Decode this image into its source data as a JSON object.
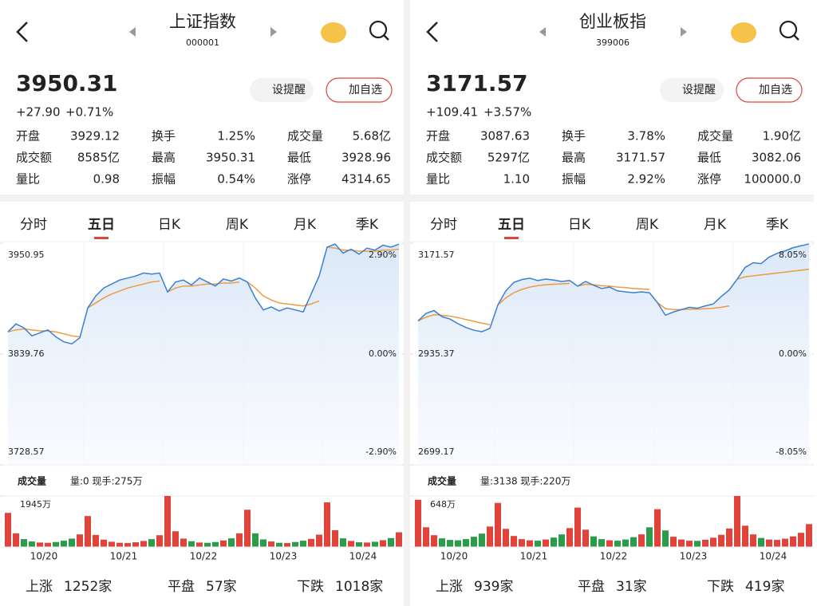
{
  "panels": [
    {
      "header": {
        "title": "上证指数",
        "code": "000001"
      },
      "quote": {
        "price": "3950.31",
        "change": "+27.90",
        "change_pct": "+0.71%"
      },
      "buttons": [
        "设提醒",
        "加自选"
      ],
      "stats": [
        {
          "label": "开盘",
          "value": "3929.12",
          "red": true
        },
        {
          "label": "换手",
          "value": "1.25%",
          "red": false
        },
        {
          "label": "成交量",
          "value": "5.68亿",
          "red": false
        },
        {
          "label": "成交额",
          "value": "8585亿",
          "red": false
        },
        {
          "label": "最高",
          "value": "3950.31",
          "red": true
        },
        {
          "label": "最低",
          "value": "3928.96",
          "red": true
        },
        {
          "label": "量比",
          "value": "0.98",
          "red": false
        },
        {
          "label": "振幅",
          "value": "0.54%",
          "red": false
        },
        {
          "label": "涨停",
          "value": "4314.65",
          "red": true
        }
      ],
      "tabs": [
        "分时",
        "五日",
        "日K",
        "周K",
        "月K",
        "季K"
      ],
      "chart": {
        "type": "line",
        "ylim": [
          3728.57,
          3950.95
        ],
        "yticks": [
          3728.57,
          3839.76,
          3950.95
        ],
        "y2lim": [
          -2.9,
          2.9
        ],
        "y2ticks": [
          {
            "value": -2.9,
            "label": "-2.90%"
          },
          {
            "value": 0,
            "label": "0.00%"
          },
          {
            "value": 2.9,
            "label": "2.90%"
          }
        ],
        "categories": [
          "10/20",
          "10/21",
          "10/22",
          "10/23",
          "10/24"
        ],
        "price": {
          "color": "#3b7fd4",
          "values": [
            3862,
            3870,
            3866,
            3858,
            3861,
            3864,
            3857,
            3852,
            3850,
            3856,
            3886,
            3898,
            3906,
            3910,
            3914,
            3916,
            3918,
            3921,
            3920,
            3921,
            3902,
            3912,
            3914,
            3909,
            3916,
            3912,
            3908,
            3915,
            3913,
            3916,
            3912,
            3896,
            3884,
            3887,
            3883,
            3886,
            3884,
            3882,
            3900,
            3918,
            3947,
            3950,
            3941,
            3945,
            3940,
            3946,
            3944,
            3949,
            3947,
            3950
          ]
        },
        "average": {
          "color": "#ef9a3c",
          "values": [
            3862,
            3864,
            3865,
            3864,
            3863,
            3863,
            3862,
            3860,
            3858,
            3857,
            3886,
            3891,
            3896,
            3900,
            3903,
            3906,
            3908,
            3910,
            3912,
            3913,
            3902,
            3906,
            3908,
            3908,
            3909,
            3910,
            3910,
            3911,
            3911,
            3912,
            3912,
            3906,
            3898,
            3894,
            3891,
            3890,
            3889,
            3888,
            3890,
            3893,
            3947,
            3946,
            3944,
            3944,
            3943,
            3943,
            3943,
            3944,
            3944,
            3945
          ]
        }
      },
      "volume": {
        "title": "成交量",
        "info": "量:0 现手:275万",
        "ylim": [
          0,
          1945
        ],
        "yticks": [
          {
            "value": 1945,
            "label": "1945万"
          }
        ],
        "up_color": "#e0433a",
        "down_color": "#2d9c4a",
        "values": [
          1300,
          520,
          300,
          210,
          170,
          160,
          190,
          240,
          320,
          480,
          1180,
          460,
          280,
          200,
          160,
          150,
          180,
          230,
          300,
          450,
          1945,
          600,
          320,
          220,
          170,
          160,
          190,
          250,
          330,
          520,
          1420,
          520,
          290,
          210,
          160,
          150,
          190,
          240,
          310,
          470,
          1700,
          640,
          330,
          230,
          180,
          170,
          200,
          260,
          340,
          560
        ]
      },
      "footer": [
        {
          "label": "上涨",
          "value": "1252家"
        },
        {
          "label": "平盘",
          "value": "57家"
        },
        {
          "label": "下跌",
          "value": "1018家"
        }
      ]
    },
    {
      "header": {
        "title": "创业板指",
        "code": "399006"
      },
      "quote": {
        "price": "3171.57",
        "change": "+109.41",
        "change_pct": "+3.57%"
      },
      "buttons": [
        "设提醒",
        "加自选"
      ],
      "stats": [
        {
          "label": "开盘",
          "value": "3087.63",
          "red": true
        },
        {
          "label": "换手",
          "value": "3.78%",
          "red": false
        },
        {
          "label": "成交量",
          "value": "1.90亿",
          "red": false
        },
        {
          "label": "成交额",
          "value": "5297亿",
          "red": false
        },
        {
          "label": "最高",
          "value": "3171.57",
          "red": true
        },
        {
          "label": "最低",
          "value": "3082.06",
          "red": true
        },
        {
          "label": "量比",
          "value": "1.10",
          "red": false
        },
        {
          "label": "振幅",
          "value": "2.92%",
          "red": false
        },
        {
          "label": "涨停",
          "value": "100000.0",
          "red": true
        }
      ],
      "tabs": [
        "分时",
        "五日",
        "日K",
        "周K",
        "月K",
        "季K"
      ],
      "chart": {
        "type": "line",
        "ylim": [
          2699.17,
          3171.57
        ],
        "yticks": [
          2699.17,
          2935.37,
          3171.57
        ],
        "y2lim": [
          -8.05,
          8.05
        ],
        "y2ticks": [
          {
            "value": -8.05,
            "label": "-8.05%"
          },
          {
            "value": 0,
            "label": "0.00%"
          },
          {
            "value": 8.05,
            "label": "8.05%"
          }
        ],
        "categories": [
          "10/20",
          "10/21",
          "10/22",
          "10/23",
          "10/24"
        ],
        "price": {
          "color": "#3b7fd4",
          "values": [
            3006,
            3022,
            3028,
            3015,
            3010,
            3000,
            2992,
            2986,
            2983,
            2990,
            3040,
            3070,
            3088,
            3094,
            3097,
            3092,
            3095,
            3093,
            3090,
            3092,
            3080,
            3090,
            3082,
            3075,
            3078,
            3070,
            3068,
            3066,
            3068,
            3066,
            3045,
            3018,
            3025,
            3030,
            3035,
            3033,
            3038,
            3042,
            3058,
            3072,
            3095,
            3120,
            3130,
            3128,
            3142,
            3150,
            3155,
            3162,
            3166,
            3170
          ]
        },
        "average": {
          "color": "#ef9a3c",
          "values": [
            3006,
            3014,
            3019,
            3018,
            3016,
            3013,
            3009,
            3005,
            3001,
            2998,
            3040,
            3055,
            3066,
            3073,
            3078,
            3081,
            3083,
            3084,
            3085,
            3086,
            3080,
            3084,
            3083,
            3081,
            3080,
            3078,
            3077,
            3075,
            3074,
            3073,
            3045,
            3032,
            3030,
            3030,
            3031,
            3031,
            3032,
            3033,
            3035,
            3038,
            3095,
            3100,
            3102,
            3104,
            3106,
            3108,
            3110,
            3112,
            3114,
            3116
          ]
        }
      },
      "volume": {
        "title": "成交量",
        "info": "量:3138 现手:220万",
        "ylim": [
          0,
          648
        ],
        "yticks": [
          {
            "value": 648,
            "label": "648万"
          }
        ],
        "up_color": "#e0433a",
        "down_color": "#2d9c4a",
        "values": [
          600,
          250,
          150,
          110,
          90,
          85,
          100,
          130,
          170,
          260,
          560,
          230,
          140,
          100,
          85,
          80,
          95,
          120,
          160,
          240,
          500,
          220,
          135,
          100,
          85,
          80,
          95,
          125,
          160,
          250,
          480,
          210,
          130,
          95,
          80,
          78,
          92,
          118,
          155,
          235,
          648,
          270,
          160,
          115,
          95,
          90,
          105,
          135,
          180,
          290
        ]
      },
      "footer": [
        {
          "label": "上涨",
          "value": "939家"
        },
        {
          "label": "平盘",
          "value": "31家"
        },
        {
          "label": "下跌",
          "value": "419家"
        }
      ]
    }
  ]
}
